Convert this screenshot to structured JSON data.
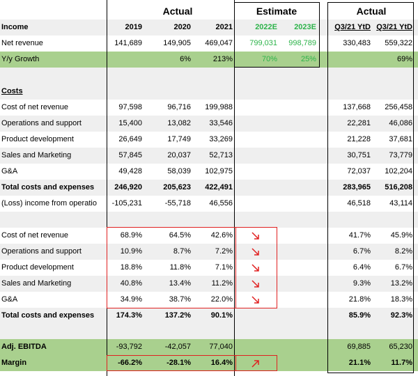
{
  "headers": {
    "actual_left": "Actual",
    "estimate": "Estimate",
    "actual_right": "Actual",
    "income": "Income",
    "years": [
      "2019",
      "2020",
      "2021",
      "2022E",
      "2023E",
      "Q3/21 YtD",
      "Q3/21 YtD"
    ]
  },
  "rows": {
    "net_revenue": {
      "label": "Net revenue",
      "values": [
        "141,689",
        "149,905",
        "469,047",
        "799,031",
        "998,789",
        "330,483",
        "559,322"
      ]
    },
    "yy_growth": {
      "label": "Y/y Growth",
      "values": [
        "",
        "6%",
        "213%",
        "70%",
        "25%",
        "",
        "69%"
      ]
    },
    "costs_heading": {
      "label": "Costs"
    },
    "cost_net_revenue": {
      "label": "Cost of net revenue",
      "values": [
        "97,598",
        "96,716",
        "199,988",
        "137,668",
        "256,458"
      ]
    },
    "ops_support": {
      "label": "Operations and support",
      "values": [
        "15,400",
        "13,082",
        "33,546",
        "22,281",
        "46,086"
      ]
    },
    "product_dev": {
      "label": "Product development",
      "values": [
        "26,649",
        "17,749",
        "33,269",
        "21,228",
        "37,681"
      ]
    },
    "sales_marketing": {
      "label": "Sales and Marketing",
      "values": [
        "57,845",
        "20,037",
        "52,713",
        "30,751",
        "73,779"
      ]
    },
    "ga": {
      "label": "G&A",
      "values": [
        "49,428",
        "58,039",
        "102,975",
        "72,037",
        "102,204"
      ]
    },
    "total_costs": {
      "label": "Total costs and expenses",
      "values": [
        "246,920",
        "205,623",
        "422,491",
        "283,965",
        "516,208"
      ]
    },
    "loss_income": {
      "label": "(Loss) income from operatio",
      "values": [
        "-105,231",
        "-55,718",
        "46,556",
        "46,518",
        "43,114"
      ]
    },
    "pct_cost_net_revenue": {
      "label": "Cost of net revenue",
      "values": [
        "68.9%",
        "64.5%",
        "42.6%",
        "41.7%",
        "45.9%"
      ]
    },
    "pct_ops_support": {
      "label": "Operations and support",
      "values": [
        "10.9%",
        "8.7%",
        "7.2%",
        "6.7%",
        "8.2%"
      ]
    },
    "pct_product_dev": {
      "label": "Product development",
      "values": [
        "18.8%",
        "11.8%",
        "7.1%",
        "6.4%",
        "6.7%"
      ]
    },
    "pct_sales_marketing": {
      "label": "Sales and Marketing",
      "values": [
        "40.8%",
        "13.4%",
        "11.2%",
        "9.3%",
        "13.2%"
      ]
    },
    "pct_ga": {
      "label": "G&A",
      "values": [
        "34.9%",
        "38.7%",
        "22.0%",
        "21.8%",
        "18.3%"
      ]
    },
    "pct_total_costs": {
      "label": "Total costs and expenses",
      "values": [
        "174.3%",
        "137.2%",
        "90.1%",
        "85.9%",
        "92.3%"
      ]
    },
    "adj_ebitda": {
      "label": "Adj. EBITDA",
      "values": [
        "-93,792",
        "-42,057",
        "77,040",
        "69,885",
        "65,230"
      ]
    },
    "margin": {
      "label": "Margin",
      "values": [
        "-66.2%",
        "-28.1%",
        "16.4%",
        "21.1%",
        "11.7%"
      ]
    }
  },
  "arrows": {
    "down_icon": "arrow-down-right-icon",
    "up_icon": "arrow-up-right-icon"
  },
  "colors": {
    "green_fill": "#a9d08e",
    "gray_fill": "#efefef",
    "estimate_green": "#2db34a",
    "arrow_red": "#e02020"
  }
}
